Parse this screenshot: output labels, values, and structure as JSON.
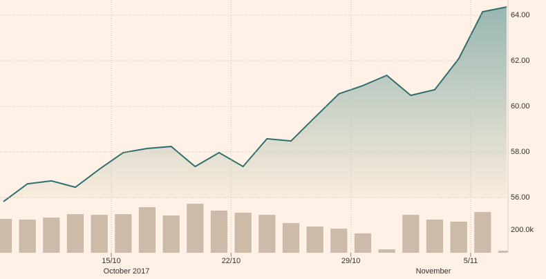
{
  "chart_data": [
    {
      "type": "area",
      "x": [
        0,
        1,
        2,
        3,
        4,
        5,
        6,
        7,
        8,
        9,
        10,
        11,
        12,
        13,
        14,
        15,
        16,
        17,
        18,
        19,
        20,
        21
      ],
      "values": [
        55.82,
        56.6,
        56.73,
        56.45,
        57.24,
        57.97,
        58.15,
        58.24,
        57.36,
        57.97,
        57.36,
        58.58,
        58.48,
        59.52,
        60.55,
        60.91,
        61.36,
        60.48,
        60.73,
        62.09,
        64.15,
        64.36
      ],
      "color": "#2f6e6e",
      "xlim": [
        0,
        21
      ],
      "xticks": [
        {
          "value": 4.5,
          "label": "15/10"
        },
        {
          "value": 9.5,
          "label": "22/10"
        },
        {
          "value": 14.5,
          "label": "29/10"
        },
        {
          "value": 19.5,
          "label": "5/11"
        }
      ],
      "ylim": [
        56,
        64.5
      ],
      "yticks": [
        {
          "value": 56,
          "label": "56.00"
        },
        {
          "value": 58,
          "label": "58.00"
        },
        {
          "value": 60,
          "label": "60.00"
        },
        {
          "value": 62,
          "label": "62.00"
        },
        {
          "value": 64,
          "label": "64.00"
        }
      ],
      "grid": true,
      "annotations": [
        "October 2017",
        "November"
      ]
    },
    {
      "type": "bar",
      "x": [
        0,
        1,
        2,
        3,
        4,
        5,
        6,
        7,
        8,
        9,
        10,
        11,
        12,
        13,
        14,
        15,
        16,
        17,
        18,
        19,
        20,
        21
      ],
      "values": [
        297000,
        291000,
        309000,
        339000,
        333000,
        339000,
        400000,
        327000,
        430000,
        370000,
        352000,
        333000,
        261000,
        230000,
        212000,
        170000,
        30000,
        333000,
        291000,
        273000,
        358000,
        18000
      ],
      "color": "#cdbbaa",
      "ylim": [
        0,
        450000
      ],
      "yticks": [
        {
          "value": 200000,
          "label": "200.0k"
        }
      ]
    }
  ]
}
